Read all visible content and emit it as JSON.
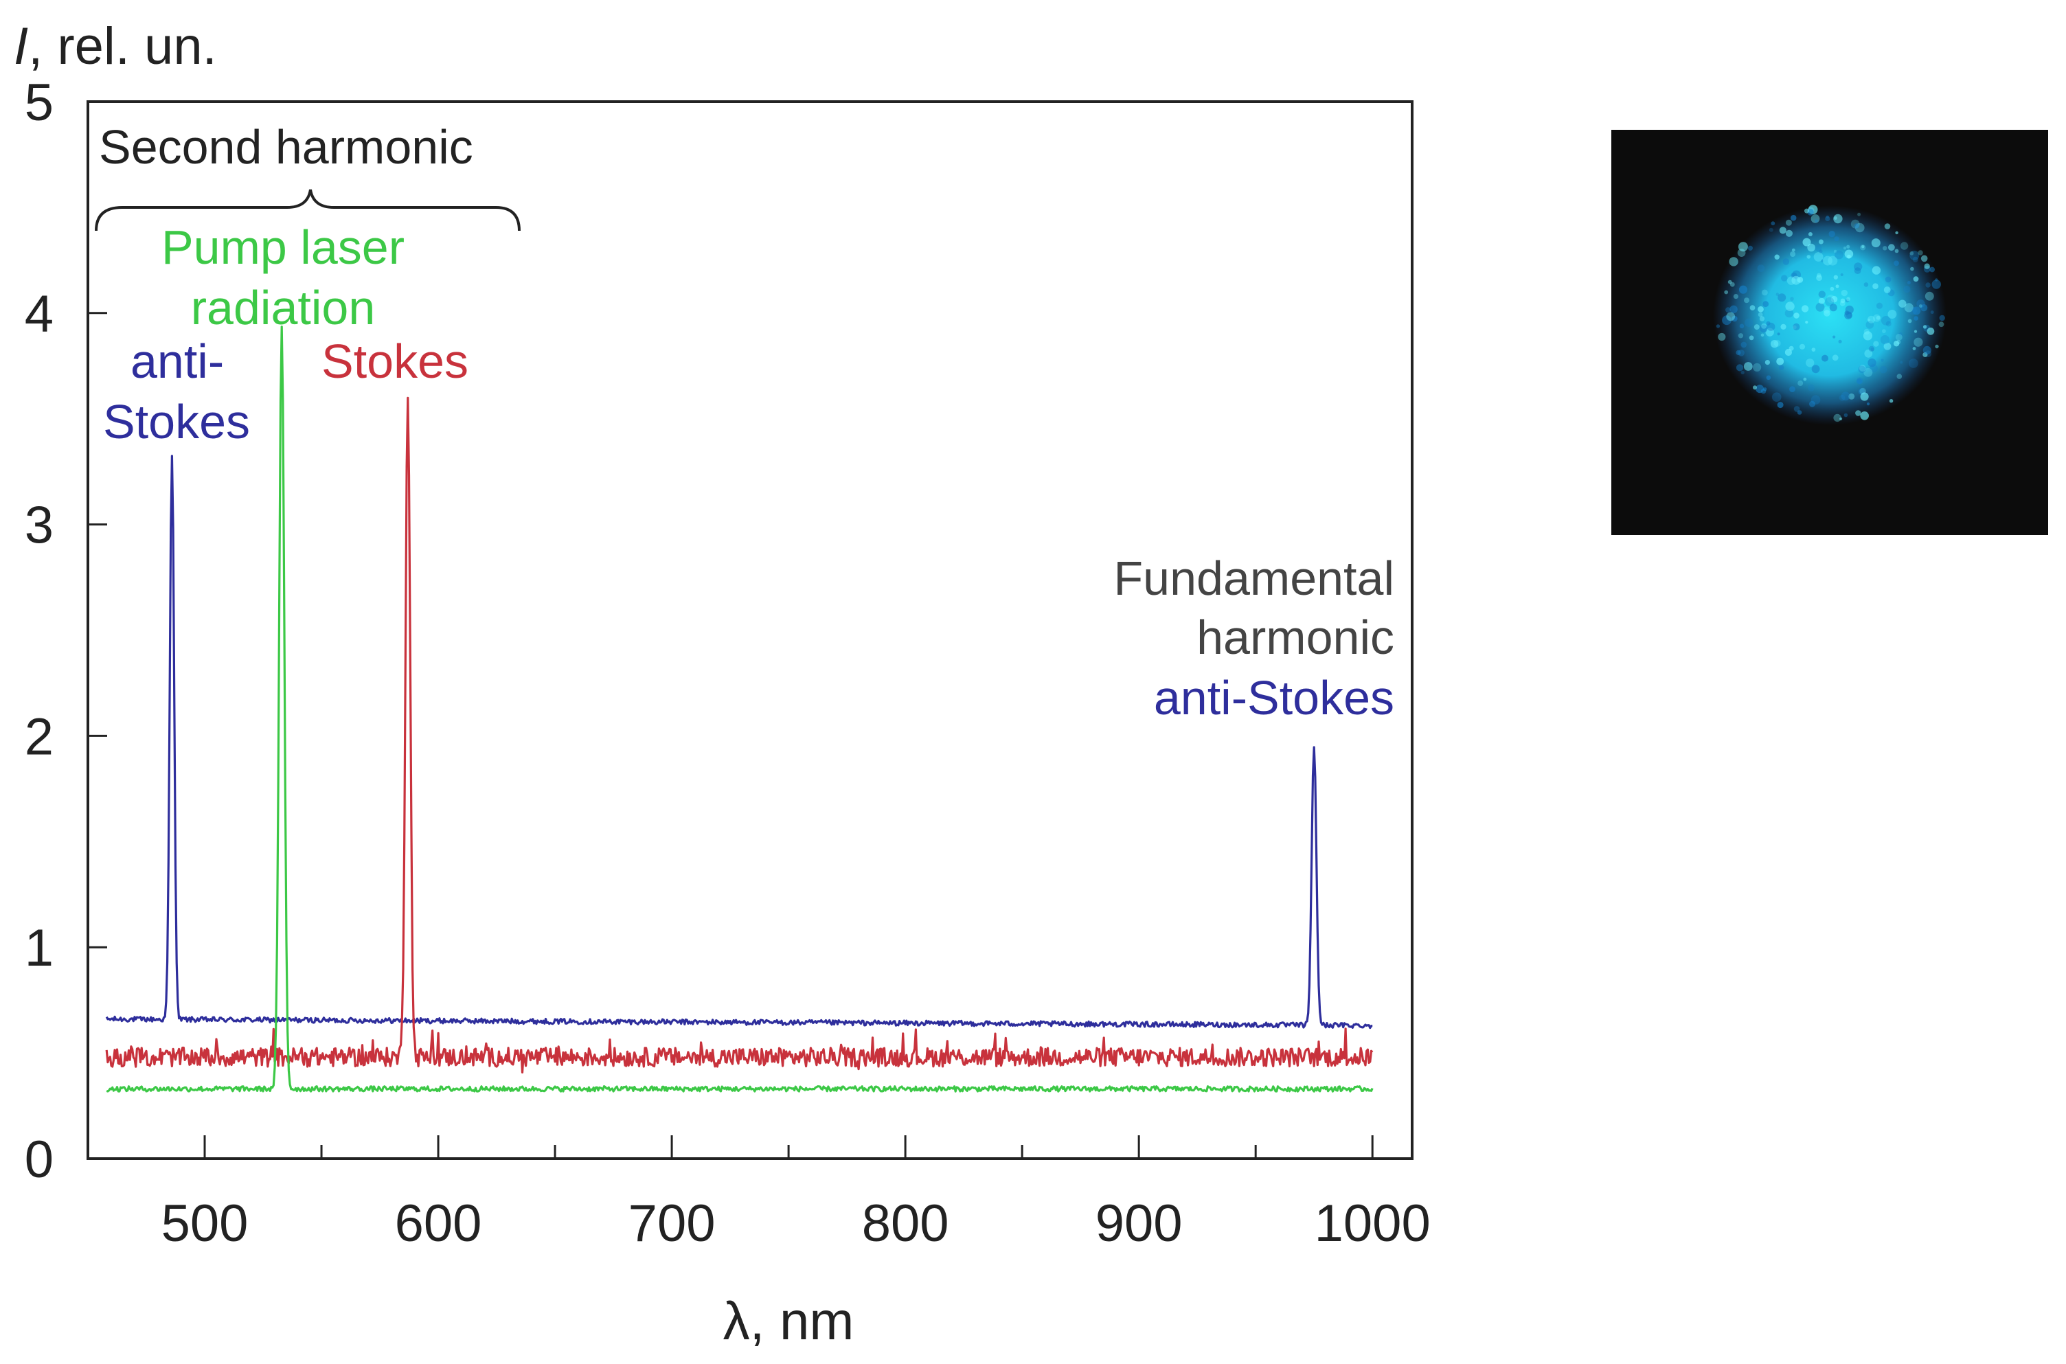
{
  "chart_data": {
    "type": "line",
    "title": "",
    "xlabel": "λ, nm",
    "ylabel_italic": "I",
    "ylabel_rest": ", rel. un.",
    "xlim": [
      450,
      1017
    ],
    "ylim": [
      0,
      5
    ],
    "x_ticks": [
      500,
      600,
      700,
      800,
      900,
      1000
    ],
    "y_ticks": [
      0,
      1,
      2,
      3,
      4,
      5
    ],
    "grid": false,
    "colors": {
      "blue": "#2e2e9c",
      "red": "#c8323c",
      "green": "#3cc846",
      "black": "#222222",
      "gray": "#444444"
    },
    "series": [
      {
        "color": "blue",
        "baseline": [
          [
            458,
            0.66
          ],
          [
            1000,
            0.63
          ]
        ],
        "peaks": [
          {
            "x": 486,
            "y": 3.33,
            "fwhm": 2.2
          },
          {
            "x": 975,
            "y": 1.98,
            "fwhm": 2.4
          }
        ]
      },
      {
        "color": "red",
        "baseline": [
          [
            458,
            0.48
          ],
          [
            1000,
            0.48
          ]
        ],
        "peaks": [
          {
            "x": 587,
            "y": 3.63,
            "fwhm": 2.4
          }
        ]
      },
      {
        "color": "green",
        "baseline": [
          [
            458,
            0.33
          ],
          [
            1000,
            0.33
          ]
        ],
        "peaks": [
          {
            "x": 533,
            "y": 3.93,
            "fwhm": 2.6
          }
        ]
      }
    ],
    "annotations": {
      "second_harmonic": "Second harmonic",
      "pump_line1": "Pump laser",
      "pump_line2": "radiation",
      "antistokes_line1": "anti-",
      "antistokes_line2": "Stokes",
      "stokes": "Stokes",
      "fundamental_line1": "Fundamental",
      "fundamental_line2": "harmonic",
      "fundamental_line3": "anti-Stokes"
    }
  },
  "photo": {
    "background": "#0c0c0c",
    "spot_color": "#22ccee"
  }
}
